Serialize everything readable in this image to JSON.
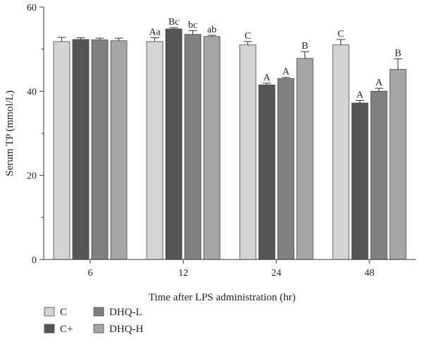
{
  "chart_data": {
    "type": "bar",
    "title": "",
    "xlabel": "Time after LPS administration (hr)",
    "ylabel": "Serum TP (mmol/L)",
    "ylim": [
      0,
      60
    ],
    "yticks": [
      "0",
      "20",
      "40",
      "60"
    ],
    "grid": false,
    "legend_position": "bottom-left",
    "categories": [
      "6",
      "12",
      "24",
      "48"
    ],
    "series": [
      {
        "name": "C",
        "color": "#d4d4d4",
        "values": [
          51.8,
          51.8,
          51.0,
          51.0
        ],
        "errors": [
          1.0,
          0.9,
          0.8,
          1.3
        ],
        "labels": [
          "",
          "Aa",
          "C",
          "C"
        ]
      },
      {
        "name": "C+",
        "color": "#555555",
        "values": [
          52.3,
          54.8,
          41.5,
          37.2
        ],
        "errors": [
          0.4,
          0.3,
          0.4,
          0.6
        ],
        "labels": [
          "",
          "Bc",
          "A",
          "A"
        ]
      },
      {
        "name": "DHQ-L",
        "color": "#808080",
        "values": [
          52.2,
          53.5,
          43.0,
          40.0
        ],
        "errors": [
          0.4,
          0.9,
          0.3,
          0.7
        ],
        "labels": [
          "",
          "bc",
          "A",
          "A"
        ]
      },
      {
        "name": "DHQ-H",
        "color": "#a6a6a6",
        "values": [
          52.0,
          53.0,
          47.8,
          45.2
        ],
        "errors": [
          0.6,
          0.3,
          1.6,
          2.5
        ],
        "labels": [
          "",
          "ab",
          "B",
          "B"
        ]
      }
    ]
  }
}
